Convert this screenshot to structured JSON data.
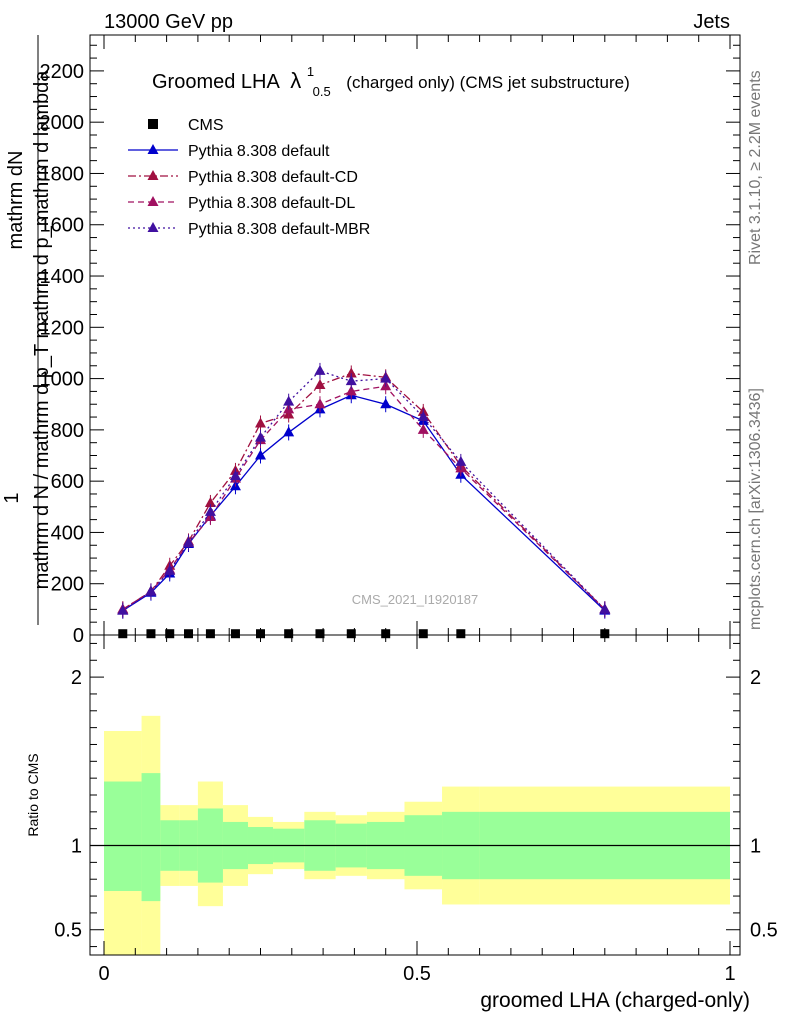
{
  "header": {
    "left": "13000 GeV pp",
    "right": "Jets"
  },
  "side": {
    "rivet": "Rivet 3.1.10, ≥ 2.2M events",
    "mcplots": "mcplots.cern.ch [arXiv:1306.3436]"
  },
  "chart_data": {
    "type": "line",
    "title": "Groomed LHA",
    "title_symbol": "λ",
    "title_sup": "1",
    "title_sub": "0.5",
    "title_suffix": "(charged only) (CMS jet substructure)",
    "xlabel": "groomed LHA (charged-only)",
    "ylabel_main_top": "1",
    "ylabel_main_num": "mathrm dN",
    "ylabel_main_den": "mathrm d N / mathrm d p_T mathrm d p_mathrm d lambda",
    "ylabel_ratio": "Ratio to CMS",
    "watermark": "CMS_2021_I1920187",
    "xlim": [
      0,
      1
    ],
    "ylim_main": [
      0,
      2340
    ],
    "ylim_ratio": [
      0.35,
      2.25
    ],
    "x_ticks": [
      "0",
      "0.5",
      "1"
    ],
    "y_ticks_main": [
      "0",
      "200",
      "400",
      "600",
      "800",
      "1000",
      "1200",
      "1400",
      "1600",
      "1800",
      "2000",
      "2200"
    ],
    "y_ticks_ratio": [
      "0.5",
      "1",
      "2"
    ],
    "x": [
      0.03,
      0.075,
      0.105,
      0.135,
      0.17,
      0.21,
      0.25,
      0.295,
      0.345,
      0.395,
      0.45,
      0.51,
      0.57,
      0.8
    ],
    "bin_edges": [
      0,
      0.06,
      0.09,
      0.12,
      0.15,
      0.19,
      0.23,
      0.27,
      0.32,
      0.37,
      0.42,
      0.48,
      0.54,
      0.6,
      1.0
    ],
    "cms_values": [
      5,
      5,
      5,
      5,
      5,
      5,
      5,
      5,
      5,
      5,
      5,
      5,
      5,
      5
    ],
    "legend": [
      {
        "label": "CMS",
        "marker": "square",
        "color": "#000000"
      },
      {
        "label": "Pythia 8.308 default",
        "marker": "triangle",
        "color": "#0000cc",
        "dash": "solid"
      },
      {
        "label": "Pythia 8.308 default-CD",
        "marker": "triangle",
        "color": "#a01040",
        "dash": "dashdot"
      },
      {
        "label": "Pythia 8.308 default-DL",
        "marker": "triangle",
        "color": "#a01060",
        "dash": "dashed"
      },
      {
        "label": "Pythia 8.308 default-MBR",
        "marker": "triangle",
        "color": "#4010a0",
        "dash": "dotted"
      }
    ],
    "series": [
      {
        "name": "Pythia 8.308 default",
        "color": "#0000cc",
        "dash": "solid",
        "values": [
          95,
          165,
          240,
          355,
          465,
          580,
          700,
          790,
          880,
          935,
          900,
          835,
          625,
          95
        ]
      },
      {
        "name": "Pythia 8.308 default-CD",
        "color": "#a01040",
        "dash": "dashdot",
        "values": [
          100,
          170,
          270,
          365,
          515,
          640,
          825,
          860,
          975,
          1020,
          1005,
          870,
          660,
          100
        ]
      },
      {
        "name": "Pythia 8.308 default-DL",
        "color": "#a01060",
        "dash": "dashed",
        "values": [
          100,
          170,
          255,
          360,
          460,
          610,
          760,
          880,
          900,
          950,
          970,
          800,
          650,
          100
        ]
      },
      {
        "name": "Pythia 8.308 default-MBR",
        "color": "#4010a0",
        "dash": "dotted",
        "values": [
          95,
          170,
          250,
          360,
          480,
          620,
          770,
          910,
          1030,
          990,
          1000,
          850,
          675,
          100
        ]
      }
    ],
    "band_inner": [
      [
        0.73,
        1.38
      ],
      [
        0.67,
        1.43
      ],
      [
        0.85,
        1.15
      ],
      [
        0.85,
        1.15
      ],
      [
        0.78,
        1.22
      ],
      [
        0.86,
        1.14
      ],
      [
        0.89,
        1.11
      ],
      [
        0.9,
        1.1
      ],
      [
        0.85,
        1.15
      ],
      [
        0.87,
        1.13
      ],
      [
        0.86,
        1.14
      ],
      [
        0.82,
        1.18
      ],
      [
        0.8,
        1.2
      ],
      [
        0.8,
        1.2
      ]
    ],
    "band_outer": [
      [
        0.3,
        1.68
      ],
      [
        0.3,
        1.77
      ],
      [
        0.76,
        1.24
      ],
      [
        0.76,
        1.24
      ],
      [
        0.64,
        1.38
      ],
      [
        0.76,
        1.24
      ],
      [
        0.83,
        1.17
      ],
      [
        0.86,
        1.14
      ],
      [
        0.8,
        1.2
      ],
      [
        0.82,
        1.18
      ],
      [
        0.8,
        1.2
      ],
      [
        0.74,
        1.26
      ],
      [
        0.65,
        1.35
      ],
      [
        0.65,
        1.35
      ]
    ],
    "colors": {
      "band_inner": "#99ff99",
      "band_outer": "#ffff99"
    }
  }
}
